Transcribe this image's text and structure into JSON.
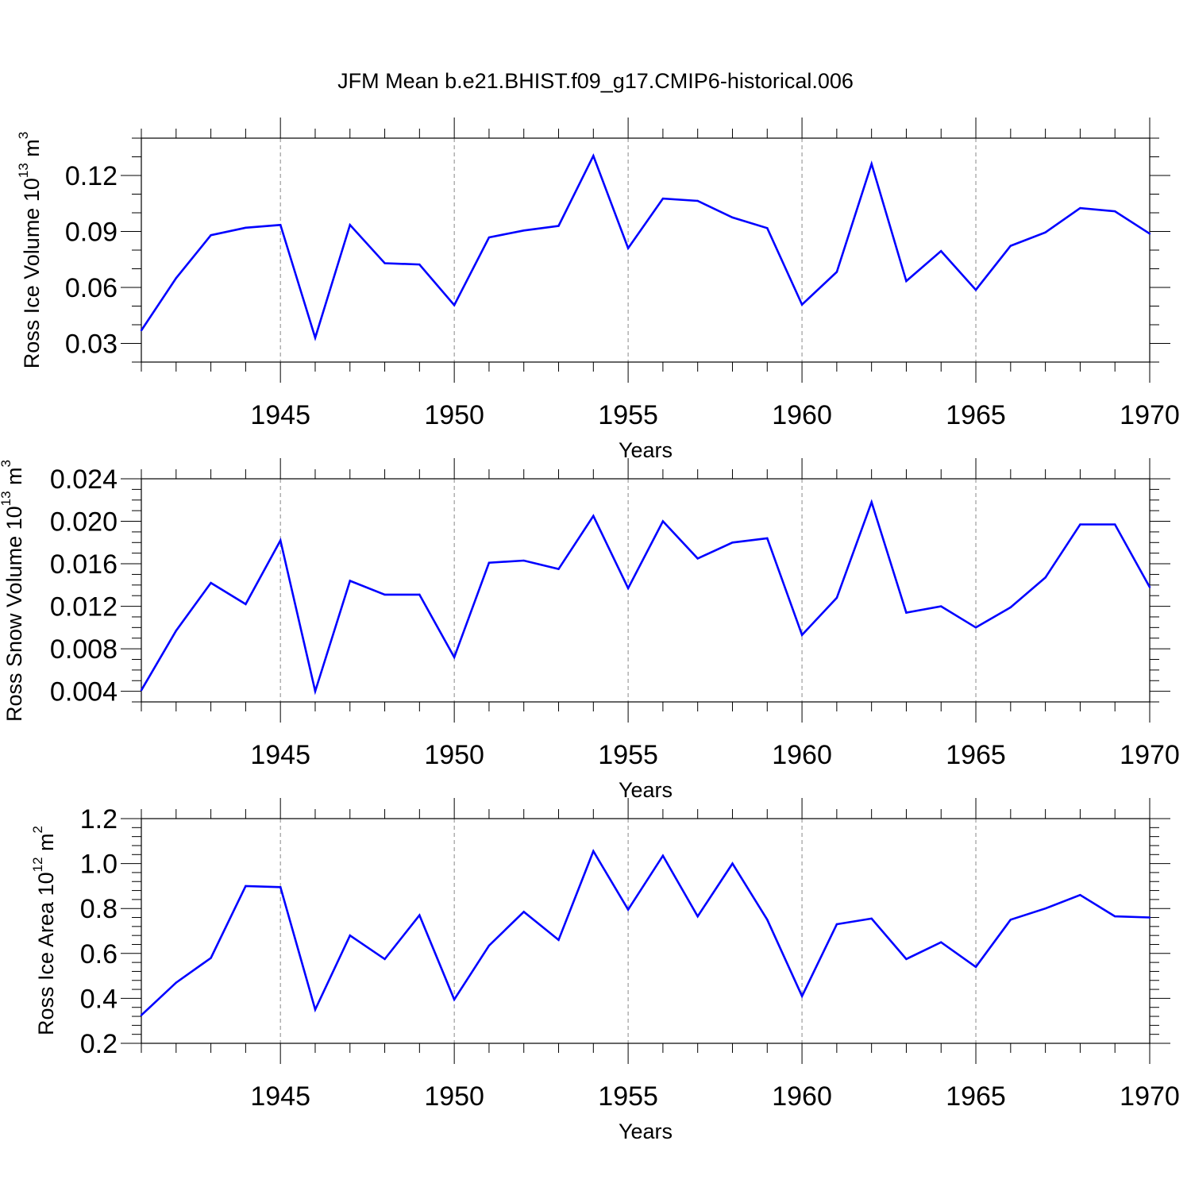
{
  "title": "JFM Mean b.e21.BHIST.f09_g17.CMIP6-historical.006",
  "colors": {
    "line": "#0000ff",
    "grid": "#888888",
    "axis": "#000000"
  },
  "chart_data": [
    {
      "type": "line",
      "title": "JFM Mean b.e21.BHIST.f09_g17.CMIP6-historical.006",
      "xlabel": "Years",
      "ylabel": "Ross Ice Volume 10",
      "ylabel_exp": "13",
      "ylabel_unit": " m",
      "ylabel_unit_exp": "3",
      "xlim": [
        1941,
        1970
      ],
      "ylim": [
        0.02,
        0.14
      ],
      "xticks": [
        1945,
        1950,
        1955,
        1960,
        1965,
        1970
      ],
      "xtick_labels": [
        "1945",
        "1950",
        "1955",
        "1960",
        "1965",
        "1970"
      ],
      "yticks": [
        0.03,
        0.06,
        0.09,
        0.12
      ],
      "ytick_labels": [
        "0.03",
        "0.06",
        "0.09",
        "0.12"
      ],
      "yminor_step": 0.01,
      "grid": "vertical-dashed",
      "x": [
        1941,
        1942,
        1943,
        1944,
        1945,
        1946,
        1947,
        1948,
        1949,
        1950,
        1951,
        1952,
        1953,
        1954,
        1955,
        1956,
        1957,
        1958,
        1959,
        1960,
        1961,
        1962,
        1963,
        1964,
        1965,
        1966,
        1967,
        1968,
        1969,
        1970
      ],
      "values": [
        0.037,
        0.065,
        0.088,
        0.092,
        0.0935,
        0.033,
        0.0935,
        0.073,
        0.0723,
        0.0505,
        0.0868,
        0.0905,
        0.093,
        0.1305,
        0.081,
        0.1076,
        0.1064,
        0.0975,
        0.0918,
        0.0508,
        0.0683,
        0.1262,
        0.0634,
        0.0795,
        0.0587,
        0.0823,
        0.0895,
        0.1025,
        0.1008,
        0.0888
      ]
    },
    {
      "type": "line",
      "xlabel": "Years",
      "ylabel": "Ross Snow Volume 10",
      "ylabel_exp": "13",
      "ylabel_unit": " m",
      "ylabel_unit_exp": "3",
      "xlim": [
        1941,
        1970
      ],
      "ylim": [
        0.003,
        0.024
      ],
      "xticks": [
        1945,
        1950,
        1955,
        1960,
        1965,
        1970
      ],
      "xtick_labels": [
        "1945",
        "1950",
        "1955",
        "1960",
        "1965",
        "1970"
      ],
      "yticks": [
        0.004,
        0.008,
        0.012,
        0.016,
        0.02,
        0.024
      ],
      "ytick_labels": [
        "0.004",
        "0.008",
        "0.012",
        "0.016",
        "0.020",
        "0.024"
      ],
      "yminor_step": 0.001,
      "grid": "vertical-dashed",
      "x": [
        1941,
        1942,
        1943,
        1944,
        1945,
        1946,
        1947,
        1948,
        1949,
        1950,
        1951,
        1952,
        1953,
        1954,
        1955,
        1956,
        1957,
        1958,
        1959,
        1960,
        1961,
        1962,
        1963,
        1964,
        1965,
        1966,
        1967,
        1968,
        1969,
        1970
      ],
      "values": [
        0.0041,
        0.0097,
        0.0142,
        0.0122,
        0.0182,
        0.004,
        0.0144,
        0.0131,
        0.0131,
        0.0072,
        0.0161,
        0.0163,
        0.0155,
        0.0205,
        0.0137,
        0.02,
        0.0165,
        0.018,
        0.0184,
        0.0093,
        0.0128,
        0.0218,
        0.0114,
        0.012,
        0.01,
        0.0119,
        0.0147,
        0.0197,
        0.0197,
        0.0138
      ]
    },
    {
      "type": "line",
      "xlabel": "Years",
      "ylabel": "Ross Ice Area 10",
      "ylabel_exp": "12",
      "ylabel_unit": " m",
      "ylabel_unit_exp": "2",
      "xlim": [
        1941,
        1970
      ],
      "ylim": [
        0.2,
        1.2
      ],
      "xticks": [
        1945,
        1950,
        1955,
        1960,
        1965,
        1970
      ],
      "xtick_labels": [
        "1945",
        "1950",
        "1955",
        "1960",
        "1965",
        "1970"
      ],
      "yticks": [
        0.2,
        0.4,
        0.6,
        0.8,
        1.0,
        1.2
      ],
      "ytick_labels": [
        "0.2",
        "0.4",
        "0.6",
        "0.8",
        "1.0",
        "1.2"
      ],
      "yminor_step": 0.04,
      "grid": "vertical-dashed",
      "x": [
        1941,
        1942,
        1943,
        1944,
        1945,
        1946,
        1947,
        1948,
        1949,
        1950,
        1951,
        1952,
        1953,
        1954,
        1955,
        1956,
        1957,
        1958,
        1959,
        1960,
        1961,
        1962,
        1963,
        1964,
        1965,
        1966,
        1967,
        1968,
        1969,
        1970
      ],
      "values": [
        0.325,
        0.47,
        0.58,
        0.9,
        0.895,
        0.35,
        0.68,
        0.575,
        0.77,
        0.395,
        0.635,
        0.785,
        0.66,
        1.055,
        0.795,
        1.035,
        0.765,
        1.0,
        0.75,
        0.41,
        0.73,
        0.755,
        0.575,
        0.65,
        0.54,
        0.75,
        0.8,
        0.86,
        0.765,
        0.76
      ]
    }
  ]
}
